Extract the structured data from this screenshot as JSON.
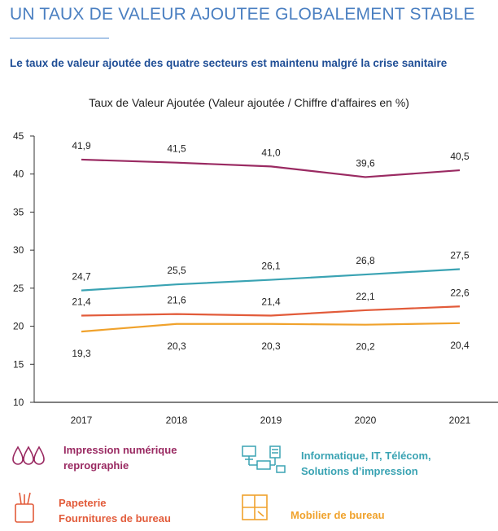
{
  "header": {
    "title": "UN TAUX DE VALEUR AJOUTEE GLOBALEMENT STABLE",
    "subtitle": "Le taux de valeur ajoutée des quatre secteurs est maintenu malgré la crise sanitaire"
  },
  "colors": {
    "title": "#4a7fc1",
    "subtitle": "#1f4e96",
    "impression": "#9a2a62",
    "informatique": "#3aa3b3",
    "papeterie": "#e25b3a",
    "mobilier": "#f0a22c"
  },
  "chart_data": {
    "type": "line",
    "title": "Taux de Valeur Ajoutée (Valeur ajoutée / Chiffre d'affaires en %)",
    "categories": [
      "2017",
      "2018",
      "2019",
      "2020",
      "2021"
    ],
    "ylim": [
      10,
      45
    ],
    "yticks": [
      "10",
      "15",
      "20",
      "25",
      "30",
      "35",
      "40",
      "45"
    ],
    "grid": false,
    "series": [
      {
        "name": "Impression numérique reprographie",
        "color": "#9a2a62",
        "values": [
          41.9,
          41.5,
          41.0,
          39.6,
          40.5
        ],
        "labels": [
          "41,9",
          "41,5",
          "41,0",
          "39,6",
          "40,5"
        ],
        "label_position": "above"
      },
      {
        "name": "Informatique, IT, Télécom, Solutions d'impression",
        "color": "#3aa3b3",
        "values": [
          24.7,
          25.5,
          26.1,
          26.8,
          27.5
        ],
        "labels": [
          "24,7",
          "25,5",
          "26,1",
          "26,8",
          "27,5"
        ],
        "label_position": "above"
      },
      {
        "name": "Papeterie Fournitures de bureau",
        "color": "#e25b3a",
        "values": [
          21.4,
          21.6,
          21.4,
          22.1,
          22.6
        ],
        "labels": [
          "21,4",
          "21,6",
          "21,4",
          "22,1",
          "22,6"
        ],
        "label_position": "above"
      },
      {
        "name": "Mobilier de bureau",
        "color": "#f0a22c",
        "values": [
          19.3,
          20.3,
          20.3,
          20.2,
          20.4
        ],
        "labels": [
          "19,3",
          "20,3",
          "20,3",
          "20,2",
          "20,4"
        ],
        "label_position": "below"
      }
    ]
  },
  "legend": [
    {
      "label": "Impression numérique\nreprographie",
      "color": "#9a2a62",
      "icon": "ink-drops-icon"
    },
    {
      "label": "Informatique, IT, Télécom,\nSolutions d’impression",
      "color": "#3aa3b3",
      "icon": "computer-network-icon"
    },
    {
      "label": "Papeterie\nFournitures de bureau",
      "color": "#e25b3a",
      "icon": "pencil-cup-icon"
    },
    {
      "label": "Mobilier de bureau",
      "color": "#f0a22c",
      "icon": "cabinet-icon"
    }
  ]
}
